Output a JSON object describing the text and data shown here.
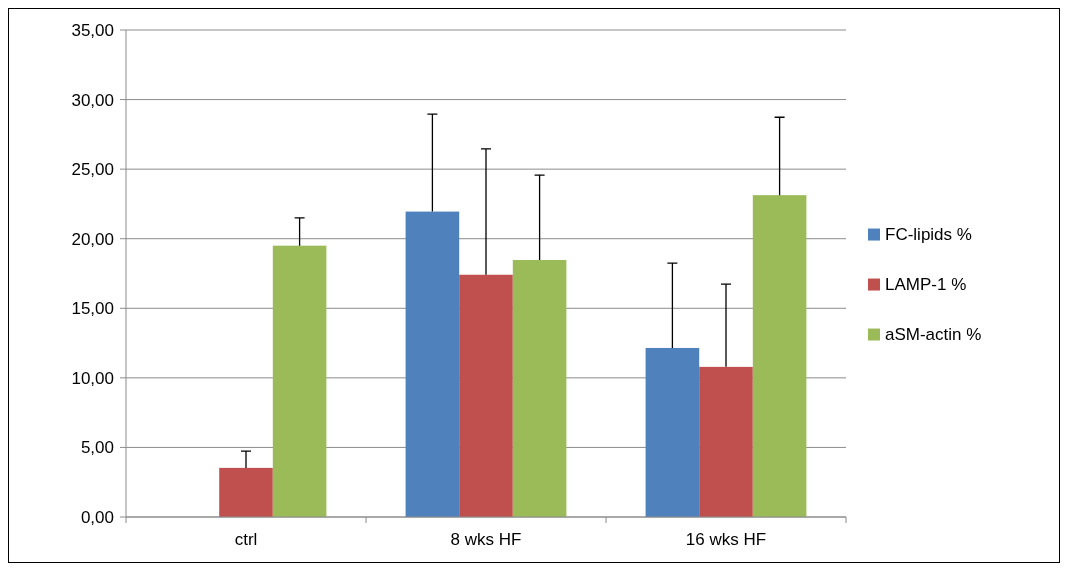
{
  "chart_data": {
    "type": "bar",
    "categories": [
      "ctrl",
      "8 wks HF",
      "16 wks HF"
    ],
    "series": [
      {
        "name": "FC-lipids %",
        "color": "#4f81bd",
        "values": [
          null,
          21.95,
          12.15
        ],
        "errors": [
          null,
          [
            21.95,
            28.95
          ],
          [
            12.15,
            18.25
          ]
        ]
      },
      {
        "name": "LAMP-1 %",
        "color": "#c0504d",
        "values": [
          3.53,
          17.41,
          10.79
        ],
        "errors": [
          [
            3.53,
            4.73
          ],
          [
            17.41,
            26.46
          ],
          [
            10.79,
            16.74
          ]
        ]
      },
      {
        "name": "aSM-actin %",
        "color": "#9bbb59",
        "values": [
          19.5,
          18.47,
          23.13
        ],
        "errors": [
          [
            19.5,
            21.5
          ],
          [
            18.47,
            24.57
          ],
          [
            23.13,
            28.73
          ]
        ]
      }
    ],
    "ylim": [
      0,
      35
    ],
    "yticks": [
      {
        "value": 0,
        "label": "0,00"
      },
      {
        "value": 5,
        "label": "5,00"
      },
      {
        "value": 10,
        "label": "10,00"
      },
      {
        "value": 15,
        "label": "15,00"
      },
      {
        "value": 20,
        "label": "20,00"
      },
      {
        "value": 25,
        "label": "25,00"
      },
      {
        "value": 30,
        "label": "30,00"
      },
      {
        "value": 35,
        "label": "35,00"
      }
    ],
    "grid": "y",
    "legend": "right"
  }
}
